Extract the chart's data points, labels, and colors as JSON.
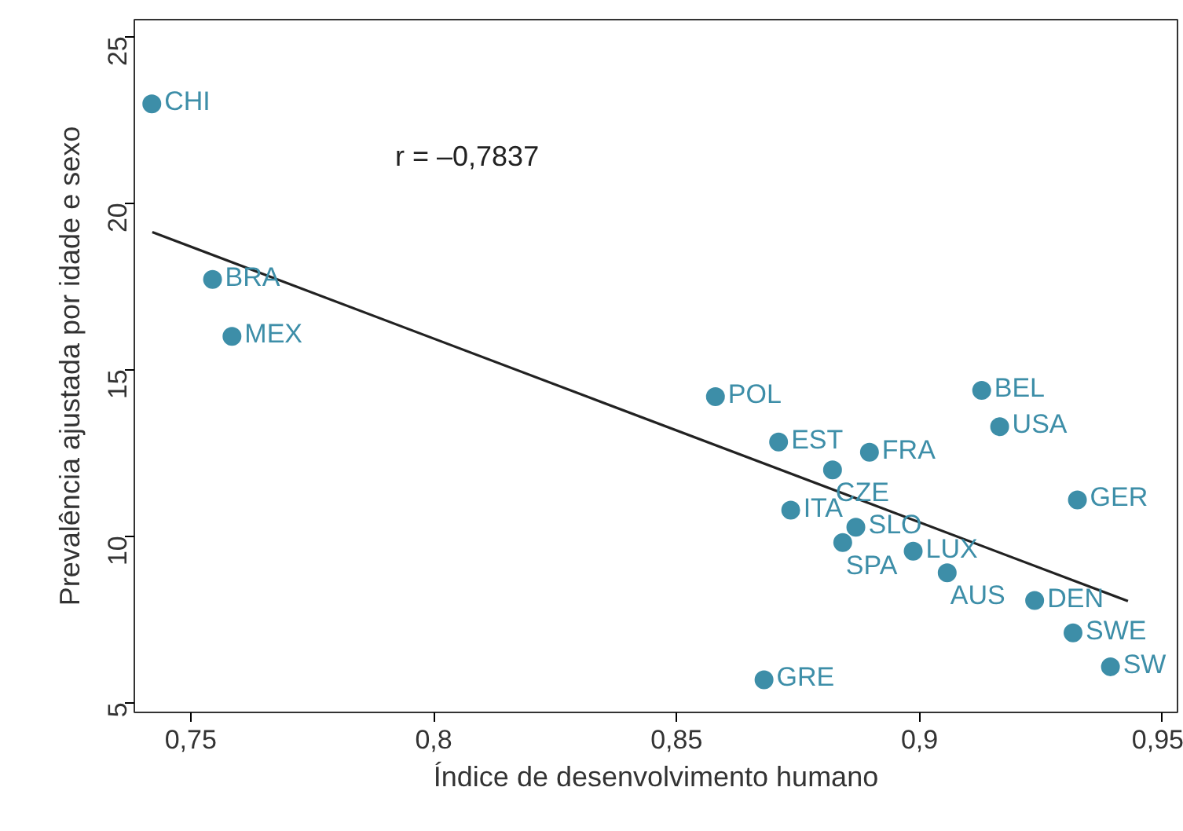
{
  "chart_data": {
    "type": "scatter",
    "xlabel": "Índice de desenvolvimento humano",
    "ylabel": "Prevalência ajustada por idade e sexo",
    "xlim": [
      0.7384,
      0.9531
    ],
    "ylim": [
      4.7,
      25.5
    ],
    "xticks": [
      {
        "value": 0.75,
        "label": "0,75"
      },
      {
        "value": 0.8,
        "label": "0,8"
      },
      {
        "value": 0.85,
        "label": "0,85"
      },
      {
        "value": 0.9,
        "label": "0,9"
      },
      {
        "value": 0.95,
        "label": "0,95"
      }
    ],
    "yticks": [
      5,
      10,
      15,
      20,
      25
    ],
    "grid": false,
    "series": [
      {
        "color": "#3d8ea8",
        "marker": "circle",
        "x": [
          0.742,
          0.7545,
          0.7585,
          0.858,
          0.9128,
          0.9165,
          0.871,
          0.8897,
          0.8821,
          0.9325,
          0.8735,
          0.8869,
          0.8842,
          0.8987,
          0.9057,
          0.9237,
          0.9316,
          0.9393,
          0.868
        ],
        "values": [
          22.97,
          17.7,
          15.99,
          14.18,
          14.37,
          13.28,
          12.82,
          12.51,
          11.98,
          11.08,
          10.77,
          10.26,
          9.8,
          9.54,
          8.89,
          8.06,
          7.09,
          6.07,
          5.68
        ]
      },
      {
        "type": "line",
        "color": "#222222",
        "x": [
          0.7421,
          0.9429
        ],
        "values": [
          19.12,
          8.04
        ]
      }
    ],
    "annotations": [
      "r = –0,7837",
      {
        "text": "CHI",
        "x": 0.742,
        "y": 22.97
      },
      {
        "text": "BRA",
        "x": 0.7545,
        "y": 17.7
      },
      {
        "text": "MEX",
        "x": 0.7585,
        "y": 15.99
      },
      {
        "text": "POL",
        "x": 0.858,
        "y": 14.18
      },
      {
        "text": "BEL",
        "x": 0.9128,
        "y": 14.37
      },
      {
        "text": "USA",
        "x": 0.9165,
        "y": 13.28
      },
      {
        "text": "EST",
        "x": 0.871,
        "y": 12.82
      },
      {
        "text": "FRA",
        "x": 0.8897,
        "y": 12.51
      },
      {
        "text": "CZE",
        "x": 0.8821,
        "y": 11.98
      },
      {
        "text": "GER",
        "x": 0.9325,
        "y": 11.08
      },
      {
        "text": "ITA",
        "x": 0.8735,
        "y": 10.77
      },
      {
        "text": "SLO",
        "x": 0.8869,
        "y": 10.26
      },
      {
        "text": "SPA",
        "x": 0.8842,
        "y": 9.8
      },
      {
        "text": "LUX",
        "x": 0.8987,
        "y": 9.54
      },
      {
        "text": "AUS",
        "x": 0.9057,
        "y": 8.89
      },
      {
        "text": "DEN",
        "x": 0.9237,
        "y": 8.06
      },
      {
        "text": "SWE",
        "x": 0.9316,
        "y": 7.09
      },
      {
        "text": "SW",
        "x": 0.9393,
        "y": 6.07
      },
      {
        "text": "GRE",
        "x": 0.868,
        "y": 5.68
      }
    ]
  }
}
